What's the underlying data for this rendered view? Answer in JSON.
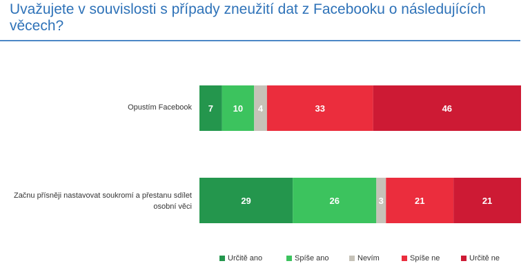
{
  "title": "Uvažujete v souvislosti s případy zneužití dat z Facebooku o následujících věcech?",
  "chart_data": {
    "type": "bar",
    "orientation": "horizontal",
    "stacked": true,
    "categories": [
      "Opustím Facebook",
      "Začnu přísněji nastavovat soukromí a přestanu sdílet osobní věci"
    ],
    "series": [
      {
        "name": "Určitě ano",
        "color": "#24964d",
        "values": [
          7,
          29
        ]
      },
      {
        "name": "Spíše ano",
        "color": "#3cc35e",
        "values": [
          10,
          26
        ]
      },
      {
        "name": "Nevím",
        "color": "#c6c2b8",
        "values": [
          4,
          3
        ]
      },
      {
        "name": "Spíše ne",
        "color": "#eb2d3d",
        "values": [
          33,
          21
        ]
      },
      {
        "name": "Určitě ne",
        "color": "#cd1a34",
        "values": [
          46,
          21
        ]
      }
    ],
    "data_label_color": "#ffffff",
    "legend": "bottom",
    "grid": false
  }
}
